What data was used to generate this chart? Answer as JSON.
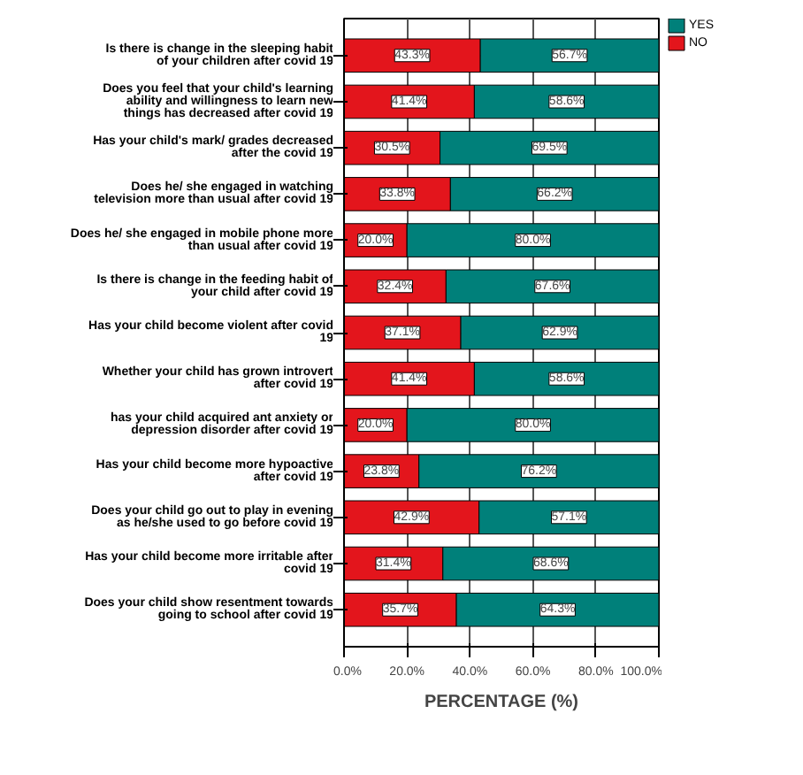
{
  "chart_data": {
    "type": "bar",
    "orientation": "horizontal",
    "stacked": true,
    "categories": [
      "Is there is change in the sleeping habit of your children after covid 19",
      "Does you feel that your child's learning ability and willingness to learn new things has decreased after covid 19",
      "Has your child's mark/ grades decreased after the covid 19",
      "Does he/ she engaged in watching television more than usual after covid 19",
      "Does he/ she engaged in mobile phone more than usual after covid 19",
      "Is there is change in the feeding habit of your child after covid 19",
      "Has your child become violent after covid 19",
      "Whether your child has grown introvert after covid 19",
      "has your child acquired ant anxiety or depression disorder after covid 19",
      "Has your child become more hypoactive after covid 19",
      "Does your child go out to play in evening as he/she used to go before covid 19",
      "Has your child become more irritable after covid 19",
      "Does your child show resentment towards going to school after covid 19"
    ],
    "series": [
      {
        "name": "NO",
        "color": "#e3151c",
        "values": [
          43.3,
          41.4,
          30.5,
          33.8,
          20.0,
          32.4,
          37.1,
          41.4,
          20.0,
          23.8,
          42.9,
          31.4,
          35.7
        ],
        "value_labels": [
          "43.3%",
          "41.4%",
          "30.5%",
          "33.8%",
          "20.0%",
          "32.4%",
          "37.1%",
          "41.4%",
          "20.0%",
          "23.8%",
          "42.9%",
          "31.4%",
          "35.7%"
        ]
      },
      {
        "name": "YES",
        "color": "#00807a",
        "values": [
          56.7,
          58.6,
          69.5,
          66.2,
          80.0,
          67.6,
          62.9,
          58.6,
          80.0,
          76.2,
          57.1,
          68.6,
          64.3
        ],
        "value_labels": [
          "56.7%",
          "58.6%",
          "69.5%",
          "66.2%",
          "80.0%",
          "67.6%",
          "62.9%",
          "58.6%",
          "80.0%",
          "76.2%",
          "57.1%",
          "68.6%",
          "64.3%"
        ]
      }
    ],
    "xlim": [
      0,
      100
    ],
    "xticks": [
      {
        "value": 0,
        "label": "0.0%"
      },
      {
        "value": 20,
        "label": "20.0%"
      },
      {
        "value": 40,
        "label": "40.0%"
      },
      {
        "value": 60,
        "label": "60.0%"
      },
      {
        "value": 80,
        "label": "80.0%"
      },
      {
        "value": 100,
        "label": "100.0%"
      }
    ],
    "xlabel": "PERCENTAGE (%)",
    "grid": true,
    "legend": "top right"
  }
}
